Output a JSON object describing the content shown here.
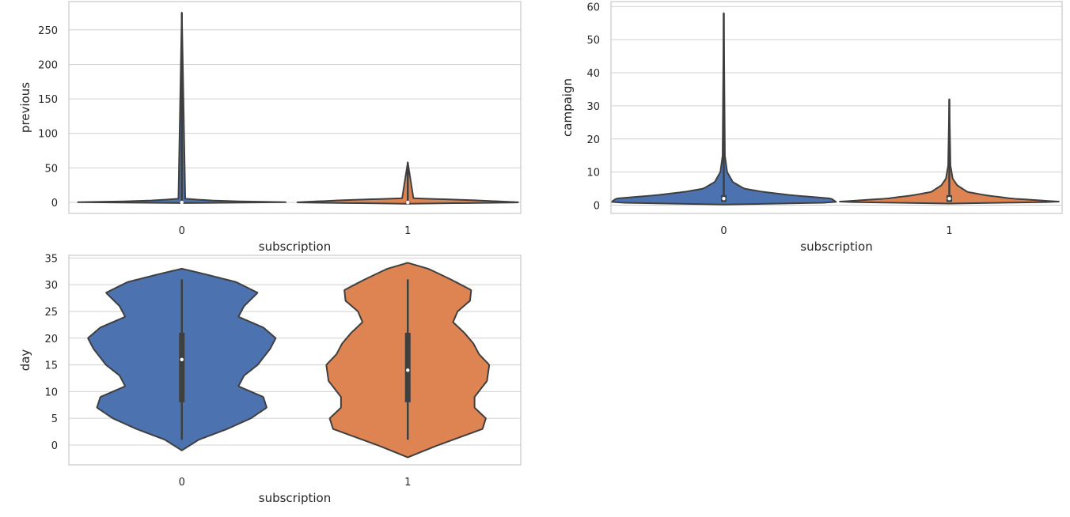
{
  "chart_data": [
    {
      "type": "violin",
      "xlabel": "subscription",
      "ylabel": "previous",
      "categories": [
        "0",
        "1"
      ],
      "ylim": [
        -16,
        291
      ],
      "yticks": [
        0,
        50,
        100,
        150,
        200,
        250
      ],
      "grid": true,
      "series": [
        {
          "category": "0",
          "color": "#4c72b0",
          "min": 0,
          "q1": 0,
          "median": 0,
          "q3": 0,
          "max": 275,
          "density": [
            [
              -1,
              0.0
            ],
            [
              0,
              1.0
            ],
            [
              2,
              0.35
            ],
            [
              5,
              0.03
            ],
            [
              275,
              0.0
            ]
          ]
        },
        {
          "category": "1",
          "color": "#dd8452",
          "min": 0,
          "q1": 0,
          "median": 0,
          "q3": 1,
          "max": 58,
          "density": [
            [
              -2,
              0.0
            ],
            [
              0,
              1.0
            ],
            [
              3,
              0.6
            ],
            [
              6,
              0.05
            ],
            [
              58,
              0.0
            ]
          ]
        }
      ]
    },
    {
      "type": "violin",
      "xlabel": "subscription",
      "ylabel": "campaign",
      "categories": [
        "0",
        "1"
      ],
      "ylim": [
        -2.5,
        61.5
      ],
      "yticks": [
        0,
        10,
        20,
        30,
        40,
        50,
        60
      ],
      "grid": true,
      "series": [
        {
          "category": "0",
          "color": "#4c72b0",
          "min": 1,
          "q1": 1,
          "median": 2,
          "q3": 3,
          "max": 58,
          "density": [
            [
              0.2,
              0.0
            ],
            [
              0.8,
              1.0
            ],
            [
              2,
              0.95
            ],
            [
              3,
              0.6
            ],
            [
              4,
              0.35
            ],
            [
              5,
              0.18
            ],
            [
              7,
              0.08
            ],
            [
              10,
              0.03
            ],
            [
              15,
              0.01
            ],
            [
              58,
              0.0
            ]
          ]
        },
        {
          "category": "1",
          "color": "#dd8452",
          "min": 1,
          "q1": 1,
          "median": 2,
          "q3": 3,
          "max": 32,
          "density": [
            [
              0.5,
              0.0
            ],
            [
              1,
              1.0
            ],
            [
              2,
              0.55
            ],
            [
              3,
              0.32
            ],
            [
              4,
              0.16
            ],
            [
              6,
              0.07
            ],
            [
              8,
              0.03
            ],
            [
              12,
              0.01
            ],
            [
              32,
              0.0
            ]
          ]
        }
      ]
    },
    {
      "type": "violin",
      "xlabel": "subscription",
      "ylabel": "day",
      "categories": [
        "0",
        "1"
      ],
      "ylim": [
        -3.7,
        35.5
      ],
      "yticks": [
        0,
        5,
        10,
        15,
        20,
        25,
        30,
        35
      ],
      "grid": true,
      "series": [
        {
          "category": "0",
          "color": "#4c72b0",
          "min": 1,
          "q1": 8,
          "median": 16,
          "q3": 21,
          "max": 31,
          "density": [
            [
              -1,
              0.0
            ],
            [
              1,
              0.15
            ],
            [
              3,
              0.4
            ],
            [
              5,
              0.61
            ],
            [
              7,
              0.75
            ],
            [
              9,
              0.72
            ],
            [
              11,
              0.5
            ],
            [
              13,
              0.55
            ],
            [
              15,
              0.67
            ],
            [
              18,
              0.78
            ],
            [
              20,
              0.83
            ],
            [
              22,
              0.72
            ],
            [
              24,
              0.5
            ],
            [
              26,
              0.55
            ],
            [
              28.5,
              0.67
            ],
            [
              30.5,
              0.48
            ],
            [
              32,
              0.2
            ],
            [
              33,
              0.0
            ]
          ]
        },
        {
          "category": "1",
          "color": "#dd8452",
          "min": 1,
          "q1": 8,
          "median": 14,
          "q3": 21,
          "max": 31,
          "density": [
            [
              -2.3,
              0.0
            ],
            [
              0,
              0.27
            ],
            [
              3,
              0.66
            ],
            [
              5,
              0.69
            ],
            [
              7,
              0.59
            ],
            [
              9,
              0.59
            ],
            [
              12,
              0.7
            ],
            [
              15,
              0.72
            ],
            [
              17,
              0.63
            ],
            [
              19,
              0.58
            ],
            [
              21,
              0.5
            ],
            [
              23,
              0.4
            ],
            [
              25,
              0.44
            ],
            [
              27,
              0.55
            ],
            [
              29,
              0.56
            ],
            [
              31,
              0.38
            ],
            [
              33,
              0.18
            ],
            [
              34.1,
              0.0
            ]
          ]
        }
      ]
    }
  ]
}
